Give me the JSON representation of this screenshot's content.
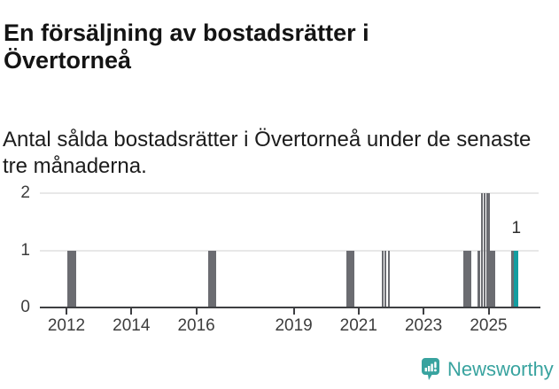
{
  "header": {
    "title_line1": "En försäljning av bostadsrätter i",
    "title_line2": "Övertorneå",
    "subtitle_line1": "Antal sålda bostadsrätter i Övertorneå under de senaste",
    "subtitle_line2": "tre månaderna."
  },
  "chart_data": {
    "type": "bar",
    "title": "En försäljning av bostadsrätter i Övertorneå",
    "subtitle": "Antal sålda bostadsrätter i Övertorneå under de senaste tre månaderna.",
    "xlabel": "",
    "ylabel": "",
    "ylim": [
      0,
      2
    ],
    "xlim_years": [
      2011.2,
      2026.6
    ],
    "grid": "horizontal",
    "legend": "none",
    "y_ticks": [
      0,
      1,
      2
    ],
    "x_ticks": [
      {
        "year": 2012,
        "label": "2012"
      },
      {
        "year": 2014,
        "label": "2014"
      },
      {
        "year": 2016,
        "label": "2016"
      },
      {
        "year": 2019,
        "label": "2019"
      },
      {
        "year": 2021,
        "label": "2021"
      },
      {
        "year": 2023,
        "label": "2023"
      },
      {
        "year": 2025,
        "label": "2025"
      }
    ],
    "colors": {
      "bar_gray": "#6b6c71",
      "bar_highlight": "#149da0",
      "gridline": "#e8e8e8",
      "axis": "#3e3f42"
    },
    "bars": [
      {
        "start": 2012.03,
        "end": 2012.3,
        "value": 1
      },
      {
        "start": 2016.37,
        "end": 2016.6,
        "value": 1
      },
      {
        "start": 2020.62,
        "end": 2020.87,
        "value": 1
      },
      {
        "start": 2021.7,
        "end": 2021.77,
        "value": 1
      },
      {
        "start": 2021.8,
        "end": 2021.86,
        "value": 1
      },
      {
        "start": 2021.91,
        "end": 2021.97,
        "value": 1
      },
      {
        "start": 2024.22,
        "end": 2024.47,
        "value": 1
      },
      {
        "start": 2024.67,
        "end": 2024.74,
        "value": 1
      },
      {
        "start": 2024.76,
        "end": 2024.82,
        "value": 2
      },
      {
        "start": 2024.84,
        "end": 2024.9,
        "value": 2
      },
      {
        "start": 2024.92,
        "end": 2025.03,
        "value": 2
      },
      {
        "start": 2025.05,
        "end": 2025.2,
        "value": 1
      },
      {
        "start": 2025.7,
        "end": 2025.79,
        "value": 1
      },
      {
        "start": 2025.79,
        "end": 2025.92,
        "value": 1,
        "highlight": true,
        "label": "1"
      }
    ]
  },
  "footer": {
    "logo_text": "Newsworthy",
    "logo_color": "#38a39f"
  }
}
